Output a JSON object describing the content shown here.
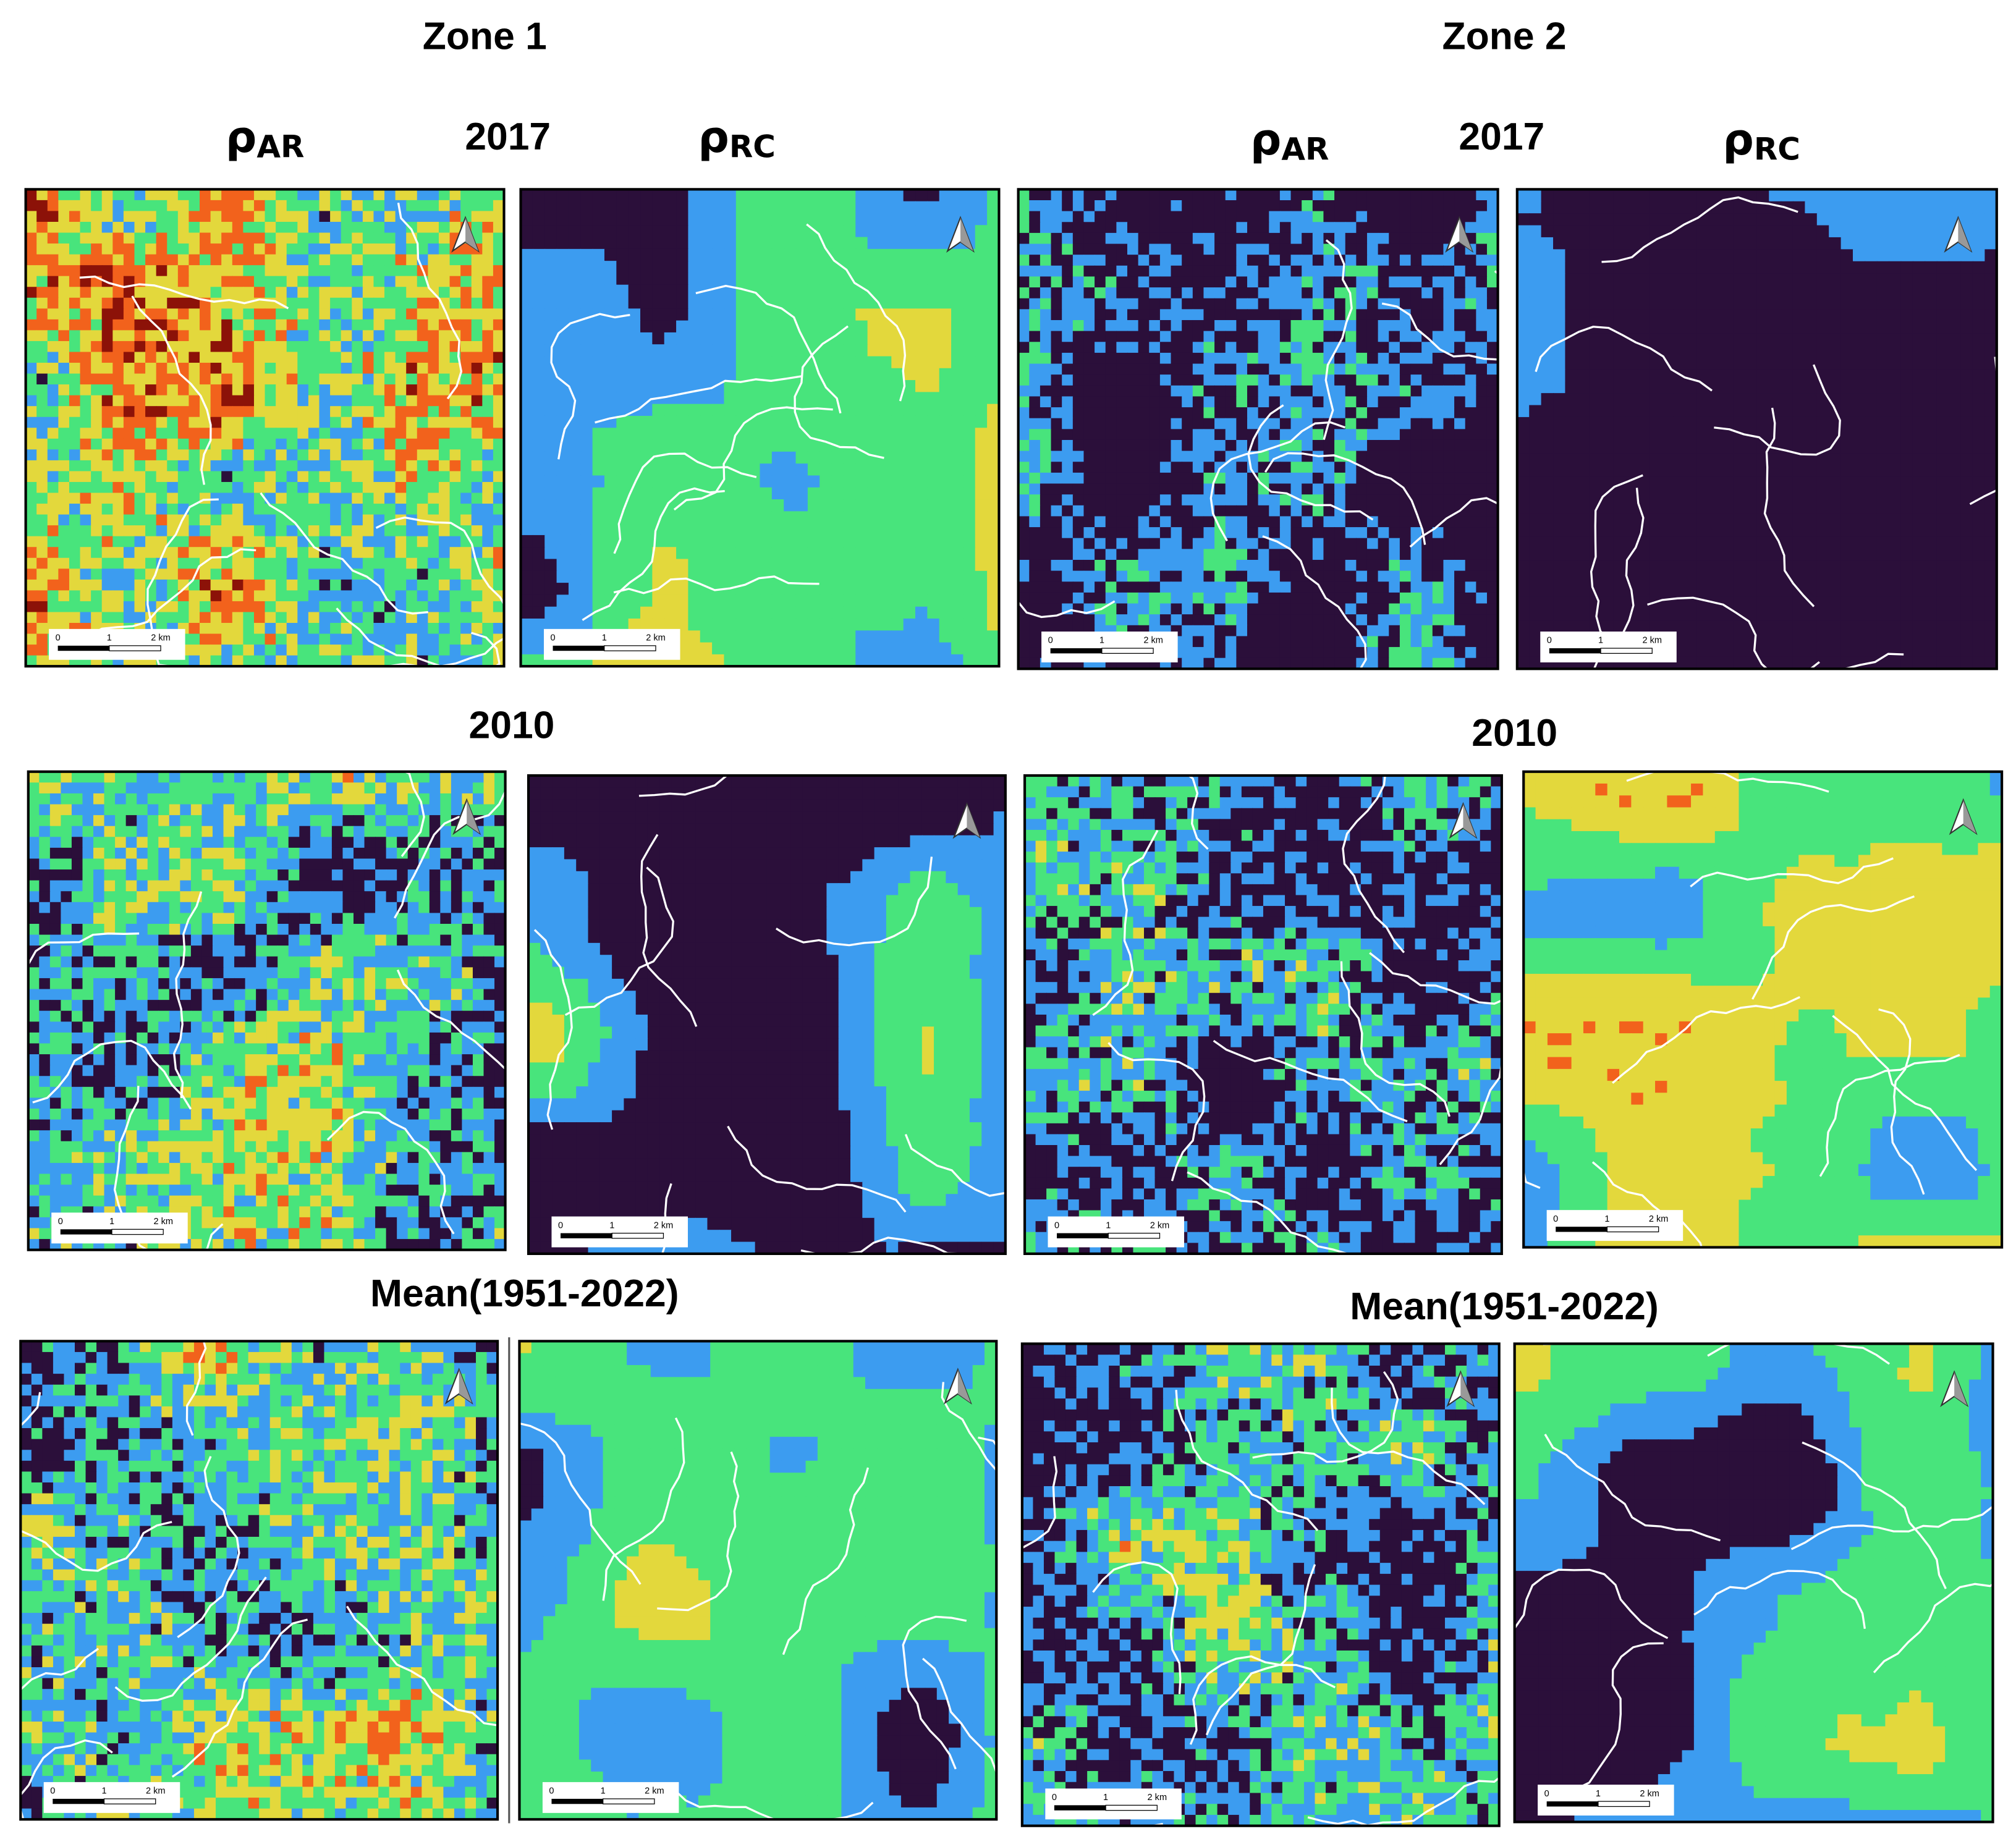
{
  "zones": [
    {
      "title": "Zone 1",
      "columns": [
        {
          "symbol": "ρ",
          "subscript": "AR"
        },
        {
          "symbol": "ρ",
          "subscript": "RC"
        }
      ],
      "rows": [
        {
          "label": "2017",
          "panels": [
            {
              "scale_labels": [
                "0",
                "1",
                "2 km"
              ]
            },
            {
              "scale_labels": [
                "0",
                "1",
                "2 km"
              ]
            }
          ]
        },
        {
          "label": "2010",
          "panels": [
            {
              "scale_labels": [
                "0",
                "1",
                "2 km"
              ]
            },
            {
              "scale_labels": [
                "0",
                "1",
                "2 km"
              ]
            }
          ]
        },
        {
          "label": "Mean(1951-2022)",
          "panels": [
            {
              "scale_labels": [
                "0",
                "1",
                "2 km"
              ]
            },
            {
              "scale_labels": [
                "0",
                "1",
                "2 km"
              ]
            }
          ]
        }
      ]
    },
    {
      "title": "Zone 2",
      "columns": [
        {
          "symbol": "ρ",
          "subscript": "AR"
        },
        {
          "symbol": "ρ",
          "subscript": "RC"
        }
      ],
      "rows": [
        {
          "label": "2017",
          "panels": [
            {
              "scale_labels": [
                "0",
                "1",
                "2 km"
              ]
            },
            {
              "scale_labels": [
                "0",
                "1",
                "2 km"
              ]
            }
          ]
        },
        {
          "label": "2010",
          "panels": [
            {
              "scale_labels": [
                "0",
                "1",
                "2 km"
              ]
            },
            {
              "scale_labels": [
                "0",
                "1",
                "2 km"
              ]
            }
          ]
        },
        {
          "label": "Mean(1951-2022)",
          "panels": [
            {
              "scale_labels": [
                "0",
                "1",
                "2 km"
              ]
            },
            {
              "scale_labels": [
                "0",
                "1",
                "2 km"
              ]
            }
          ]
        }
      ]
    }
  ]
}
